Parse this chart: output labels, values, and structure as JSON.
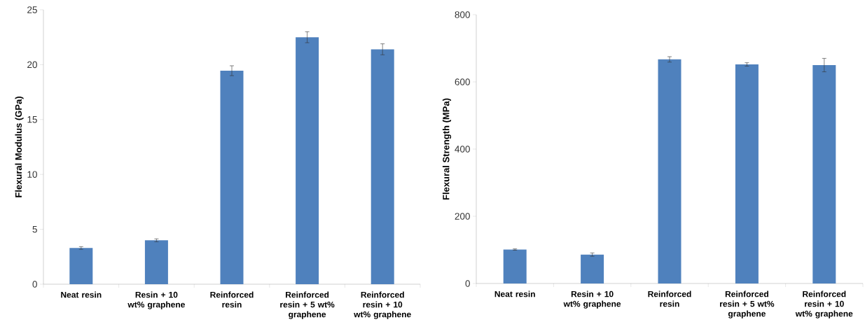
{
  "chart_data": [
    {
      "type": "bar",
      "ylabel": "Flexural Modulus (GPa)",
      "categories": [
        "Neat resin",
        "Resin + 10 wt% graphene",
        "Reinforced resin",
        "Reinforced resin + 5 wt% graphene",
        "Reinforced resin + 10 wt% graphene"
      ],
      "values": [
        3.3,
        4.0,
        19.45,
        22.5,
        21.4
      ],
      "errors": [
        0.12,
        0.13,
        0.45,
        0.5,
        0.5
      ],
      "color": "#4f81bd",
      "ylim": [
        0,
        25
      ],
      "yticks": [
        0,
        5,
        10,
        15,
        20,
        25
      ]
    },
    {
      "type": "bar",
      "ylabel": "Flexural Strength (MPa)",
      "categories": [
        "Neat resin",
        "Resin + 10 wt% graphene",
        "Reinforced resin",
        "Reinforced resin + 5 wt% graphene",
        "Reinforced resin + 10 wt% graphene"
      ],
      "values": [
        101,
        86,
        667,
        652,
        650
      ],
      "errors": [
        2,
        5,
        8,
        5,
        20
      ],
      "color": "#4f81bd",
      "ylim": [
        0,
        800
      ],
      "yticks": [
        0,
        200,
        400,
        600,
        800
      ]
    }
  ]
}
